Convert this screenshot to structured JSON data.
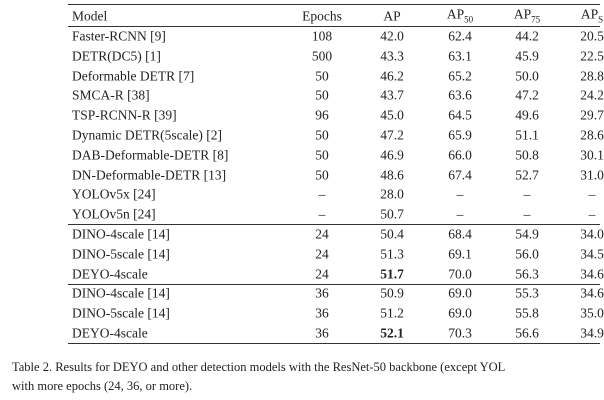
{
  "table": {
    "headers": [
      {
        "text": "Model"
      },
      {
        "text": "Epochs"
      },
      {
        "text": "AP"
      },
      {
        "text": "AP",
        "sub": "50"
      },
      {
        "text": "AP",
        "sub": "75"
      },
      {
        "text": "AP",
        "sub": "S"
      }
    ],
    "groups": [
      {
        "rows": [
          [
            "Faster-RCNN [9]",
            "108",
            "42.0",
            "62.4",
            "44.2",
            "20.5"
          ],
          [
            "DETR(DC5) [1]",
            "500",
            "43.3",
            "63.1",
            "45.9",
            "22.5"
          ],
          [
            "Deformable DETR [7]",
            "50",
            "46.2",
            "65.2",
            "50.0",
            "28.8"
          ],
          [
            "SMCA-R [38]",
            "50",
            "43.7",
            "63.6",
            "47.2",
            "24.2"
          ],
          [
            "TSP-RCNN-R [39]",
            "96",
            "45.0",
            "64.5",
            "49.6",
            "29.7"
          ],
          [
            "Dynamic DETR(5scale) [2]",
            "50",
            "47.2",
            "65.9",
            "51.1",
            "28.6"
          ],
          [
            "DAB-Deformable-DETR [8]",
            "50",
            "46.9",
            "66.0",
            "50.8",
            "30.1"
          ],
          [
            "DN-Deformable-DETR [13]",
            "50",
            "48.6",
            "67.4",
            "52.7",
            "31.0"
          ],
          [
            "YOLOv5x [24]",
            "–",
            "28.0",
            "–",
            "–",
            "–"
          ],
          [
            "YOLOv5n [24]",
            "–",
            "50.7",
            "–",
            "–",
            "–"
          ]
        ]
      },
      {
        "rows": [
          [
            "DINO-4scale [14]",
            "24",
            "50.4",
            "68.4",
            "54.9",
            "34.0"
          ],
          [
            "DINO-5scale [14]",
            "24",
            "51.3",
            "69.1",
            "56.0",
            "34.5"
          ],
          [
            "DEYO-4scale",
            "24",
            "51.7",
            "70.0",
            "56.3",
            "34.6"
          ]
        ]
      },
      {
        "rows": [
          [
            "DINO-4scale [14]",
            "36",
            "50.9",
            "69.0",
            "55.3",
            "34.6"
          ],
          [
            "DINO-5scale [14]",
            "36",
            "51.2",
            "69.0",
            "55.8",
            "35.0"
          ],
          [
            "DEYO-4scale",
            "36",
            "52.1",
            "70.3",
            "56.6",
            "34.9"
          ]
        ]
      }
    ]
  },
  "caption": [
    "Table 2. Results for DEYO and other detection models with the ResNet-50 backbone (except YOL",
    "with more epochs (24, 36, or more)."
  ]
}
